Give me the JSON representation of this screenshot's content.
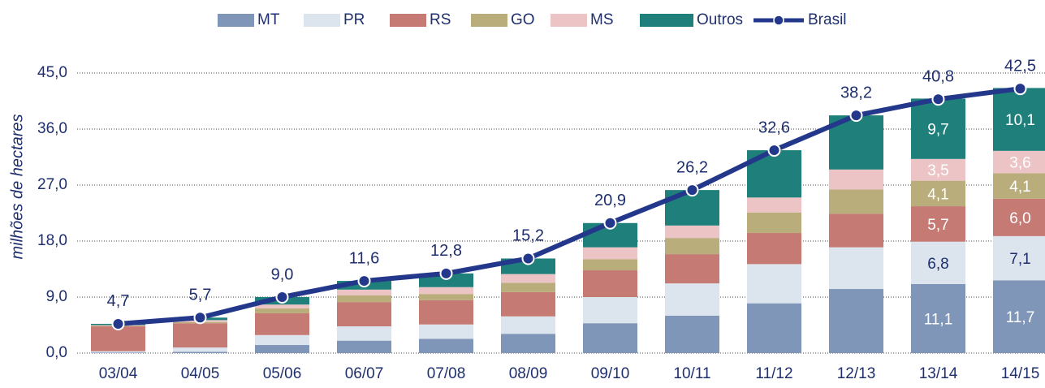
{
  "chart_data": {
    "type": "stacked-bar-line",
    "y_label": "milhões de hectares",
    "categories": [
      "03/04",
      "04/05",
      "05/06",
      "06/07",
      "07/08",
      "08/09",
      "09/10",
      "10/11",
      "11/12",
      "12/13",
      "13/14",
      "14/15"
    ],
    "ylim": [
      0,
      45
    ],
    "yticks": [
      {
        "value": 0,
        "label": "0,0"
      },
      {
        "value": 9,
        "label": "9,0"
      },
      {
        "value": 18,
        "label": "18,0"
      },
      {
        "value": 27,
        "label": "27,0"
      },
      {
        "value": 36,
        "label": "36,0"
      },
      {
        "value": 45,
        "label": "45,0"
      }
    ],
    "grid": true,
    "series": [
      {
        "name": "MT",
        "color": "#7f96b8",
        "values": [
          0.1,
          0.2,
          1.3,
          2.0,
          2.3,
          3.1,
          4.8,
          6.0,
          8.0,
          10.3,
          11.1,
          11.7
        ],
        "value_labels": [
          null,
          null,
          null,
          null,
          null,
          null,
          null,
          null,
          null,
          null,
          "11,1",
          "11,7"
        ]
      },
      {
        "name": "PR",
        "color": "#dce4ee",
        "values": [
          0.2,
          0.7,
          1.6,
          2.3,
          2.3,
          2.8,
          4.2,
          5.2,
          6.3,
          6.7,
          6.8,
          7.1
        ],
        "value_labels": [
          null,
          null,
          null,
          null,
          null,
          null,
          null,
          null,
          null,
          null,
          "6,8",
          "7,1"
        ]
      },
      {
        "name": "RS",
        "color": "#c57a74",
        "values": [
          4.0,
          3.9,
          3.5,
          3.9,
          3.9,
          3.9,
          4.3,
          4.7,
          5.0,
          5.4,
          5.7,
          6.0
        ],
        "value_labels": [
          null,
          null,
          null,
          null,
          null,
          null,
          null,
          null,
          null,
          null,
          "5,7",
          "6,0"
        ]
      },
      {
        "name": "GO",
        "color": "#b9ad7c",
        "values": [
          0.1,
          0.2,
          0.8,
          1.1,
          1.0,
          1.5,
          1.8,
          2.6,
          3.3,
          3.9,
          4.1,
          4.1
        ],
        "value_labels": [
          null,
          null,
          null,
          null,
          null,
          null,
          null,
          null,
          null,
          null,
          "4,1",
          "4,1"
        ]
      },
      {
        "name": "MS",
        "color": "#ecc4c6",
        "values": [
          0.1,
          0.3,
          0.6,
          0.9,
          1.1,
          1.4,
          1.9,
          2.0,
          2.4,
          3.2,
          3.5,
          3.6
        ],
        "value_labels": [
          null,
          null,
          null,
          null,
          null,
          null,
          null,
          null,
          null,
          null,
          "3,5",
          "3,6"
        ]
      },
      {
        "name": "Outros",
        "color": "#1f7f7b",
        "values": [
          0.2,
          0.4,
          1.2,
          1.4,
          2.2,
          2.5,
          3.9,
          5.7,
          7.6,
          8.7,
          9.7,
          10.1
        ],
        "value_labels": [
          null,
          null,
          null,
          null,
          null,
          null,
          null,
          null,
          null,
          null,
          "9,7",
          "10,1"
        ]
      },
      {
        "name": "Brasil",
        "color": "#23388a",
        "kind": "line",
        "values": [
          4.7,
          5.7,
          9.0,
          11.6,
          12.8,
          15.2,
          20.9,
          26.2,
          32.6,
          38.2,
          40.8,
          42.5
        ],
        "value_labels": [
          "4,7",
          "5,7",
          "9,0",
          "11,6",
          "12,8",
          "15,2",
          "20,9",
          "26,2",
          "32,6",
          "38,2",
          "40,8",
          "42,5"
        ]
      }
    ]
  }
}
